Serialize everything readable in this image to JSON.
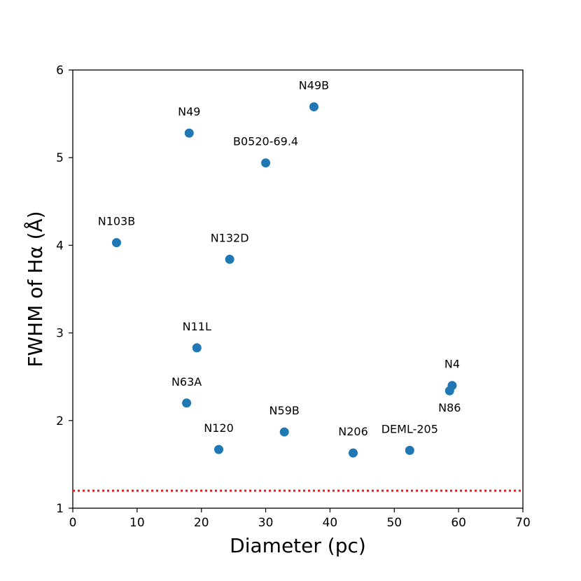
{
  "chart_data": {
    "type": "scatter",
    "title": "",
    "xlabel": "Diameter (pc)",
    "ylabel": "FWHM of Hα (Å)",
    "xlim": [
      0,
      70
    ],
    "ylim": [
      1,
      6
    ],
    "xticks": [
      0,
      10,
      20,
      30,
      40,
      50,
      60,
      70
    ],
    "yticks": [
      1,
      2,
      3,
      4,
      5,
      6
    ],
    "grid": false,
    "point_color": "#1f77b4",
    "reference_line": {
      "y": 1.2,
      "style": "dotted",
      "color": "#e41a1c"
    },
    "points": [
      {
        "label": "N49B",
        "x": 37.5,
        "y": 5.58,
        "label_pos": "above"
      },
      {
        "label": "N49",
        "x": 18.1,
        "y": 5.28,
        "label_pos": "above"
      },
      {
        "label": "B0520-69.4",
        "x": 30.0,
        "y": 4.94,
        "label_pos": "above"
      },
      {
        "label": "N103B",
        "x": 6.8,
        "y": 4.03,
        "label_pos": "above"
      },
      {
        "label": "N132D",
        "x": 24.4,
        "y": 3.84,
        "label_pos": "above"
      },
      {
        "label": "N11L",
        "x": 19.3,
        "y": 2.83,
        "label_pos": "above"
      },
      {
        "label": "N63A",
        "x": 17.7,
        "y": 2.2,
        "label_pos": "above"
      },
      {
        "label": "N120",
        "x": 22.7,
        "y": 1.67,
        "label_pos": "above"
      },
      {
        "label": "N59B",
        "x": 32.9,
        "y": 1.87,
        "label_pos": "above"
      },
      {
        "label": "N206",
        "x": 43.6,
        "y": 1.63,
        "label_pos": "above"
      },
      {
        "label": "DEML-205",
        "x": 52.4,
        "y": 1.66,
        "label_pos": "above"
      },
      {
        "label": "N4",
        "x": 59.0,
        "y": 2.4,
        "label_pos": "above"
      },
      {
        "label": "N86",
        "x": 58.6,
        "y": 2.34,
        "label_pos": "below"
      }
    ]
  }
}
